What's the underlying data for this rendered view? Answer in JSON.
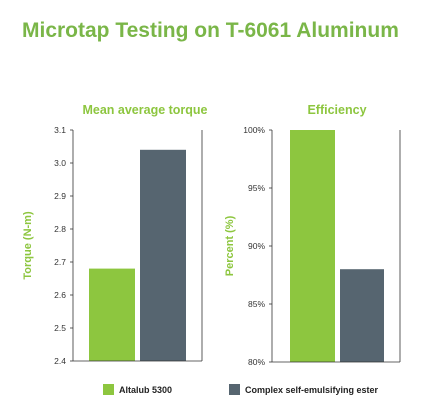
{
  "title": "Microtap Testing on T-6061 Aluminum",
  "colors": {
    "title": "#7ab648",
    "accent": "#8dc63f",
    "dark": "#566570",
    "axis": "#333333"
  },
  "legend": [
    {
      "label": "Altalub 5300",
      "color": "#8dc63f"
    },
    {
      "label": "Complex self-emulsifying ester",
      "color": "#566570"
    }
  ],
  "chart_data": [
    {
      "type": "bar",
      "title": "Mean average torque",
      "ylabel": "Torque (N-m)",
      "ylim": [
        2.4,
        3.1
      ],
      "yticks": [
        "3.1",
        "3.0",
        "2.9",
        "2.8",
        "2.7",
        "2.6",
        "2.5",
        "2.4"
      ],
      "series": [
        {
          "name": "Altalub 5300",
          "values": [
            2.68
          ]
        },
        {
          "name": "Complex self-emulsifying ester",
          "values": [
            3.04
          ]
        }
      ],
      "grid": false
    },
    {
      "type": "bar",
      "title": "Efficiency",
      "ylabel": "Percent (%)",
      "ylim": [
        80,
        100
      ],
      "yticks": [
        "100%",
        "95%",
        "90%",
        "85%",
        "80%"
      ],
      "series": [
        {
          "name": "Altalub 5300",
          "values": [
            100
          ]
        },
        {
          "name": "Complex self-emulsifying ester",
          "values": [
            88
          ]
        }
      ],
      "grid": false
    }
  ]
}
